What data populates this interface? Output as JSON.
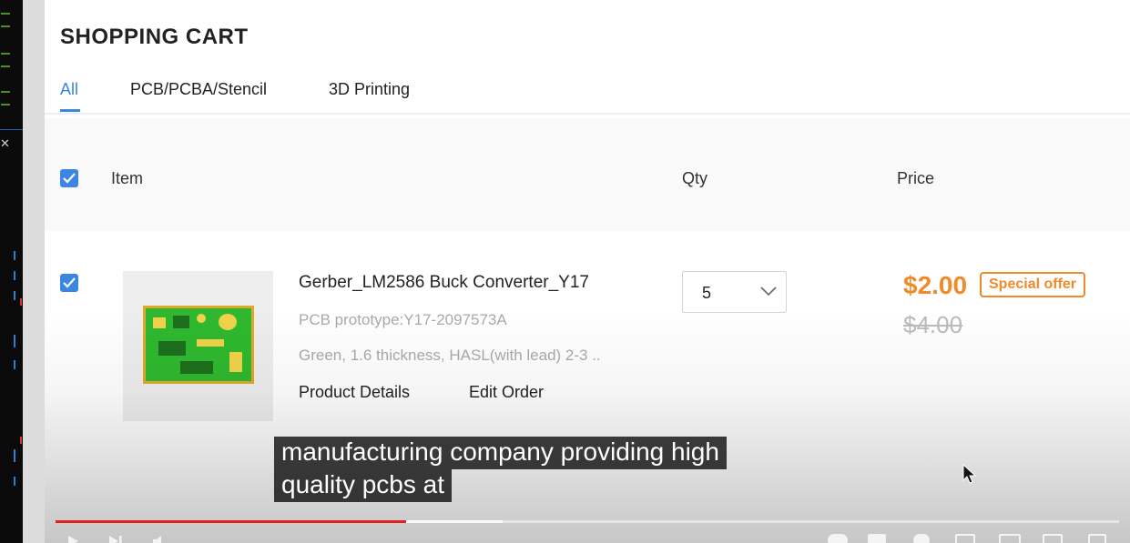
{
  "page": {
    "title": "SHOPPING CART",
    "tabs": [
      {
        "label": "All",
        "active": true
      },
      {
        "label": "PCB/PCBA/Stencil",
        "active": false
      },
      {
        "label": "3D Printing",
        "active": false
      }
    ]
  },
  "table": {
    "columns": {
      "item": "Item",
      "qty": "Qty",
      "price": "Price"
    },
    "select_all_checked": true
  },
  "cart_item": {
    "checked": true,
    "name": "Gerber_LM2586 Buck Converter_Y17",
    "subtitle": "PCB prototype:Y17-2097573A",
    "spec": "Green, 1.6 thickness, HASL(with lead) 2-3 ..",
    "links": {
      "details": "Product Details",
      "edit": "Edit Order"
    },
    "qty": "5",
    "price": "$2.00",
    "badge": "Special offer",
    "old_price": "$4.00"
  },
  "video": {
    "caption_line1": "manufacturing company providing high",
    "caption_line2": "quality pcbs at",
    "progress_fraction": 0.33,
    "buffered_fraction": 0.42
  },
  "colors": {
    "accent": "#3a86e0",
    "price": "#f08a2a",
    "progress": "#e32020"
  }
}
